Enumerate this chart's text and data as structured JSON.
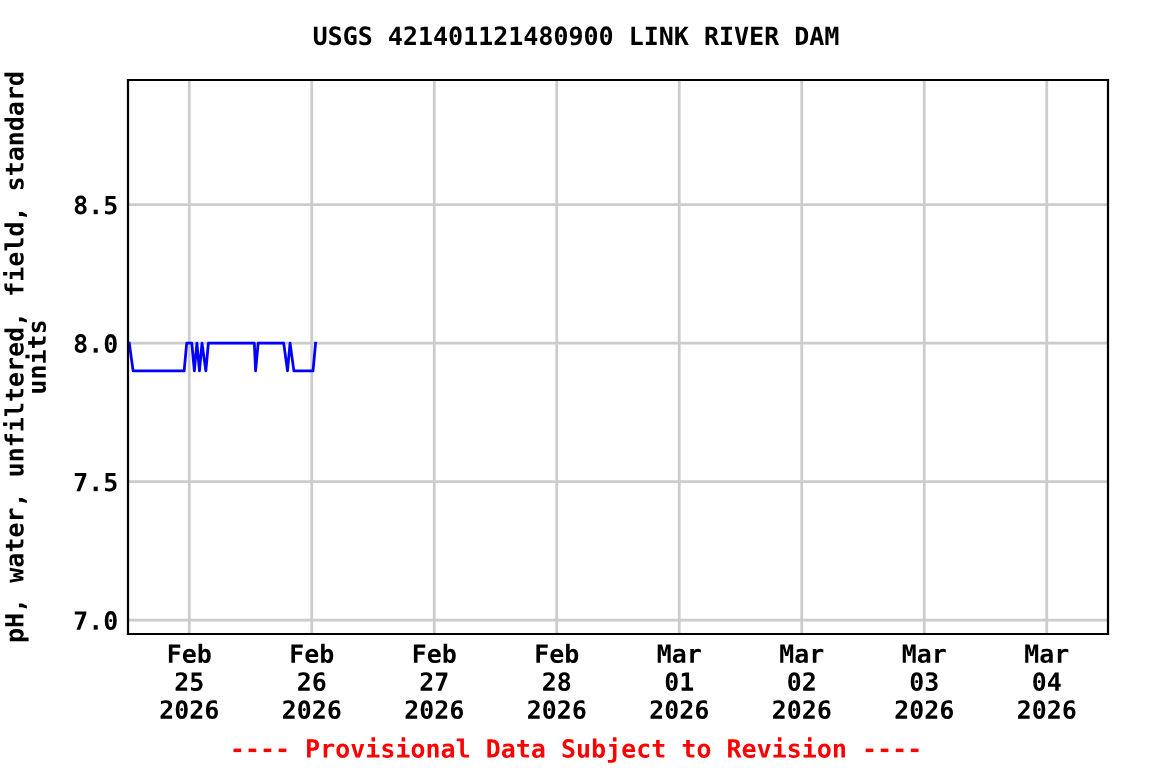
{
  "chart_data": {
    "type": "line",
    "title": "USGS 421401121480900 LINK RIVER DAM",
    "ylabel": "pH, water, unfiltered, field, standard\nunits",
    "x": [
      "2026-02-24T12:15",
      "2026-02-24T13:00",
      "2026-02-24T23:00",
      "2026-02-24T23:30",
      "2026-02-25T00:30",
      "2026-02-25T01:00",
      "2026-02-25T01:30",
      "2026-02-25T02:00",
      "2026-02-25T02:30",
      "2026-02-25T03:15",
      "2026-02-25T03:45",
      "2026-02-25T12:45",
      "2026-02-25T13:00",
      "2026-02-25T13:30",
      "2026-02-25T18:30",
      "2026-02-25T19:15",
      "2026-02-25T19:45",
      "2026-02-25T20:30",
      "2026-02-26T00:15",
      "2026-02-26T00:45"
    ],
    "series": [
      {
        "color": "#0000ff",
        "values": [
          8.0,
          7.9,
          7.9,
          8.0,
          8.0,
          7.9,
          8.0,
          7.9,
          8.0,
          7.9,
          8.0,
          8.0,
          7.9,
          8.0,
          8.0,
          7.9,
          8.0,
          7.9,
          7.9,
          8.0
        ]
      }
    ],
    "xlim": [
      "2026-02-24T12:00",
      "2026-03-04T12:00"
    ],
    "xticks": [
      {
        "value": "2026-02-25",
        "label": "Feb\n25\n2026"
      },
      {
        "value": "2026-02-26",
        "label": "Feb\n26\n2026"
      },
      {
        "value": "2026-02-27",
        "label": "Feb\n27\n2026"
      },
      {
        "value": "2026-02-28",
        "label": "Feb\n28\n2026"
      },
      {
        "value": "2026-03-01",
        "label": "Mar\n01\n2026"
      },
      {
        "value": "2026-03-02",
        "label": "Mar\n02\n2026"
      },
      {
        "value": "2026-03-03",
        "label": "Mar\n03\n2026"
      },
      {
        "value": "2026-03-04",
        "label": "Mar\n04\n2026"
      }
    ],
    "ylim": [
      6.95,
      8.95
    ],
    "yticks": [
      {
        "value": 7.0,
        "label": "7.0"
      },
      {
        "value": 7.5,
        "label": "7.5"
      },
      {
        "value": 8.0,
        "label": "8.0"
      },
      {
        "value": 8.5,
        "label": "8.5"
      }
    ],
    "grid": true,
    "legend": false,
    "marker": "none",
    "line_style": "solid",
    "annotations": [
      "---- Provisional Data Subject to Revision ----"
    ]
  }
}
